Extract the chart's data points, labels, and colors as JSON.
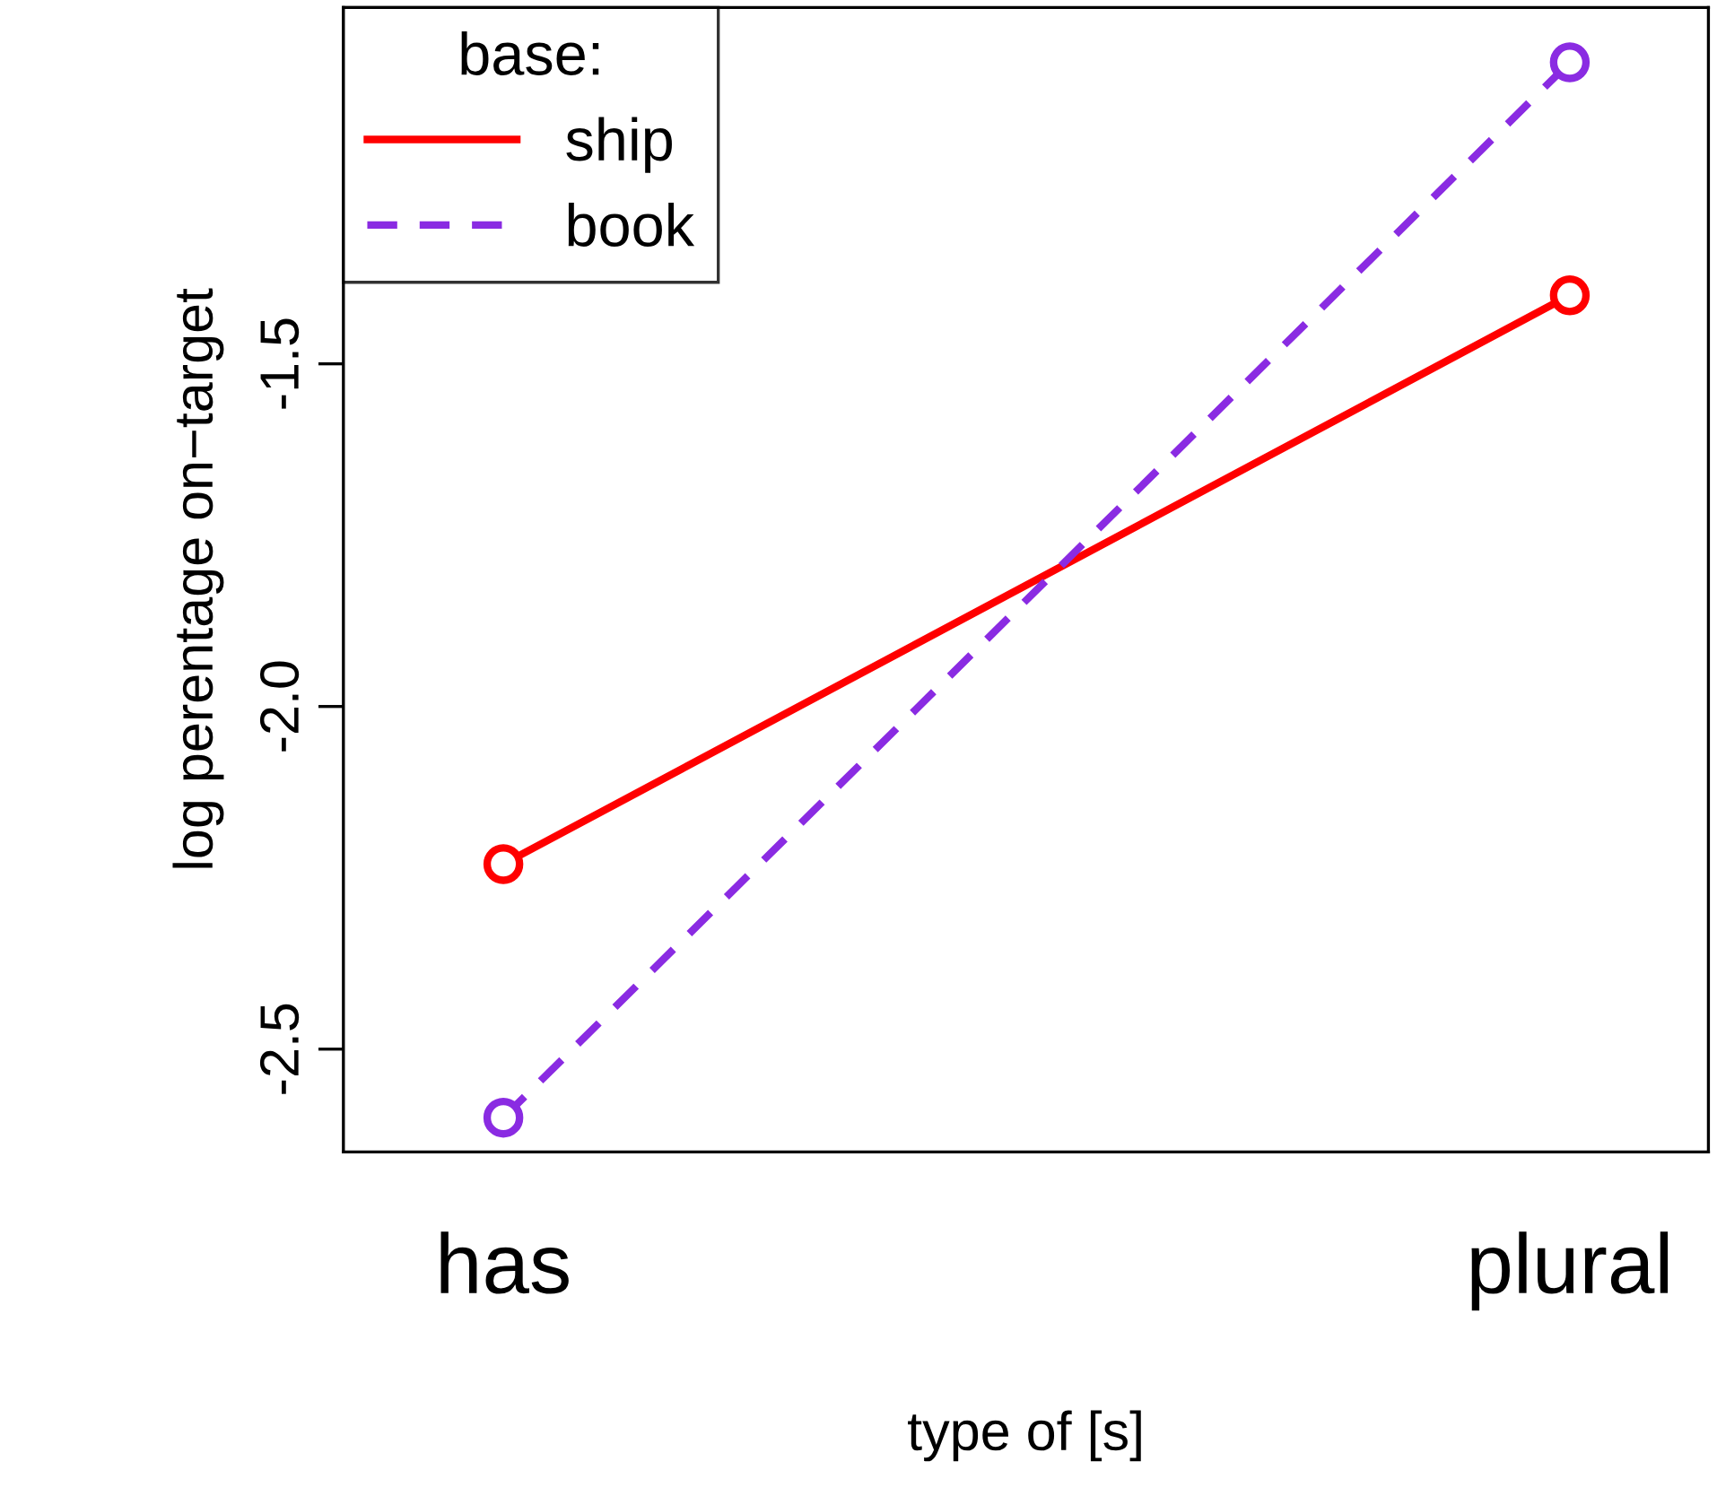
{
  "chart_data": {
    "type": "line",
    "xlabel": "type of [s]",
    "ylabel": "log perentage on−target",
    "categories": [
      "has",
      "plural"
    ],
    "series": [
      {
        "name": "ship",
        "color": "#ff0000",
        "values": [
          -2.23,
          -1.4
        ],
        "line_style": "solid"
      },
      {
        "name": "book",
        "color": "#8a2be2",
        "values": [
          -2.6,
          -1.06
        ],
        "line_style": "dashed"
      }
    ],
    "legend_title": "base:",
    "legend": "top left",
    "marker": "circle",
    "grid": false,
    "ylim": [
      -2.65,
      -0.98
    ],
    "yticks": [
      -2.5,
      {
        "value": -2.0,
        "label": "-2.0"
      },
      -1.5
    ]
  }
}
